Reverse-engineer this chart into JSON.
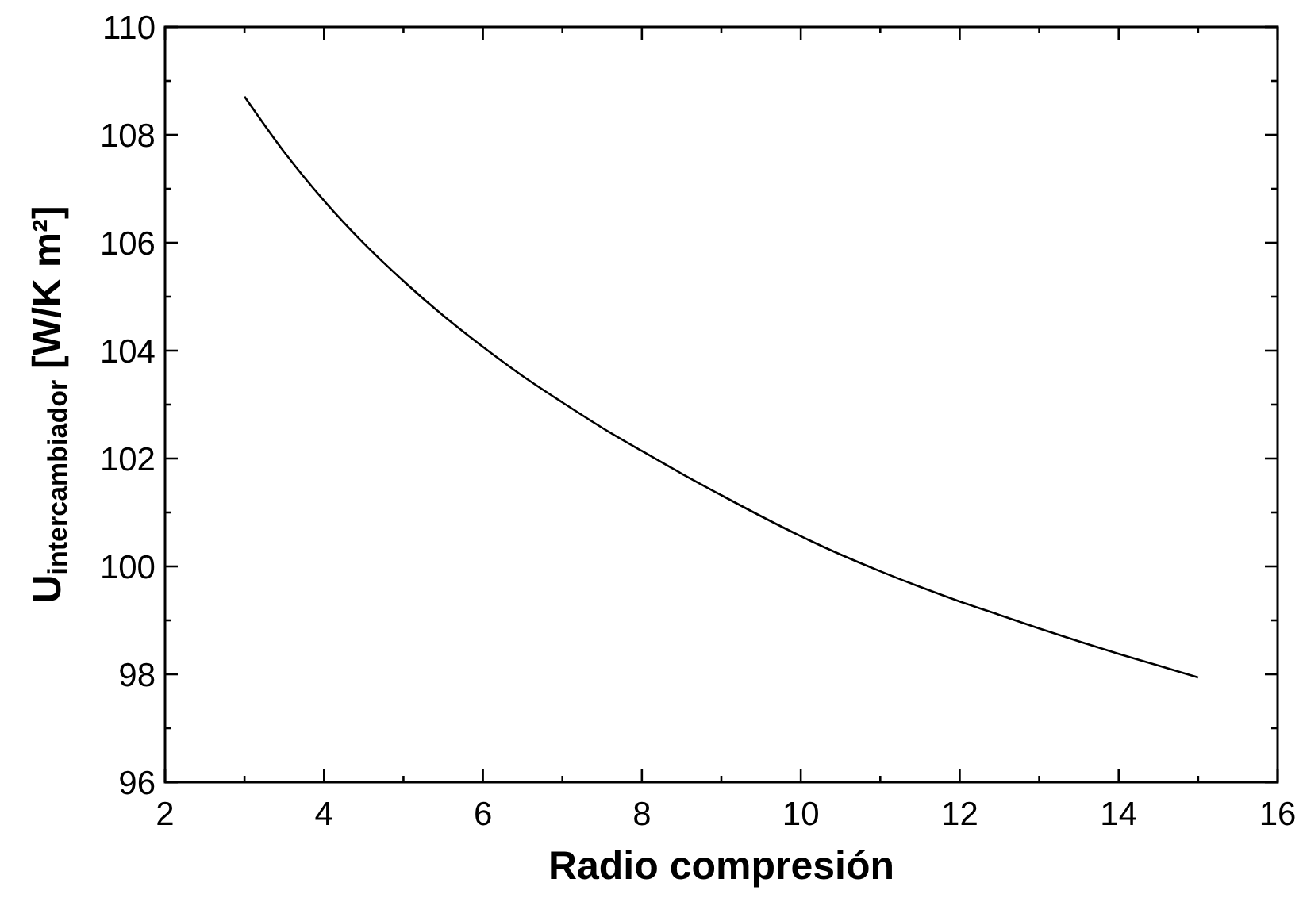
{
  "chart_data": {
    "type": "line",
    "xlabel": "Radio compresión",
    "ylabel": "U$_{intercambiador}$ [W/K m²]",
    "x": [
      3,
      3.5,
      4,
      4.5,
      5,
      5.5,
      6,
      6.5,
      7,
      7.5,
      8,
      8.5,
      9,
      9.5,
      10,
      10.5,
      11,
      11.5,
      12,
      12.5,
      13,
      13.5,
      14,
      14.5,
      15
    ],
    "series": [
      {
        "color": "#000000",
        "values": [
          108.71,
          107.68,
          106.78,
          105.99,
          105.29,
          104.65,
          104.07,
          103.53,
          103.04,
          102.57,
          102.14,
          101.72,
          101.32,
          100.93,
          100.56,
          100.22,
          99.91,
          99.62,
          99.35,
          99.1,
          98.85,
          98.61,
          98.38,
          98.16,
          97.94
        ]
      }
    ],
    "xlim": [
      2,
      16
    ],
    "xticks": [
      2,
      {
        "value": 3,
        "label": null
      },
      4,
      {
        "value": 5,
        "label": null
      },
      6,
      {
        "value": 7,
        "label": null
      },
      8,
      {
        "value": 9,
        "label": null
      },
      10,
      {
        "value": 11,
        "label": null
      },
      12,
      {
        "value": 13,
        "label": null
      },
      14,
      {
        "value": 15,
        "label": null
      },
      16
    ],
    "ylim": [
      96,
      110
    ],
    "yticks": [
      96,
      {
        "value": 97,
        "label": null
      },
      98,
      {
        "value": 99,
        "label": null
      },
      100,
      {
        "value": 101,
        "label": null
      },
      102,
      {
        "value": 103,
        "label": null
      },
      104,
      {
        "value": 105,
        "label": null
      },
      106,
      {
        "value": 107,
        "label": null
      },
      108,
      {
        "value": 109,
        "label": null
      },
      110
    ],
    "grid": false,
    "marker": "none",
    "line_style": "solid"
  }
}
